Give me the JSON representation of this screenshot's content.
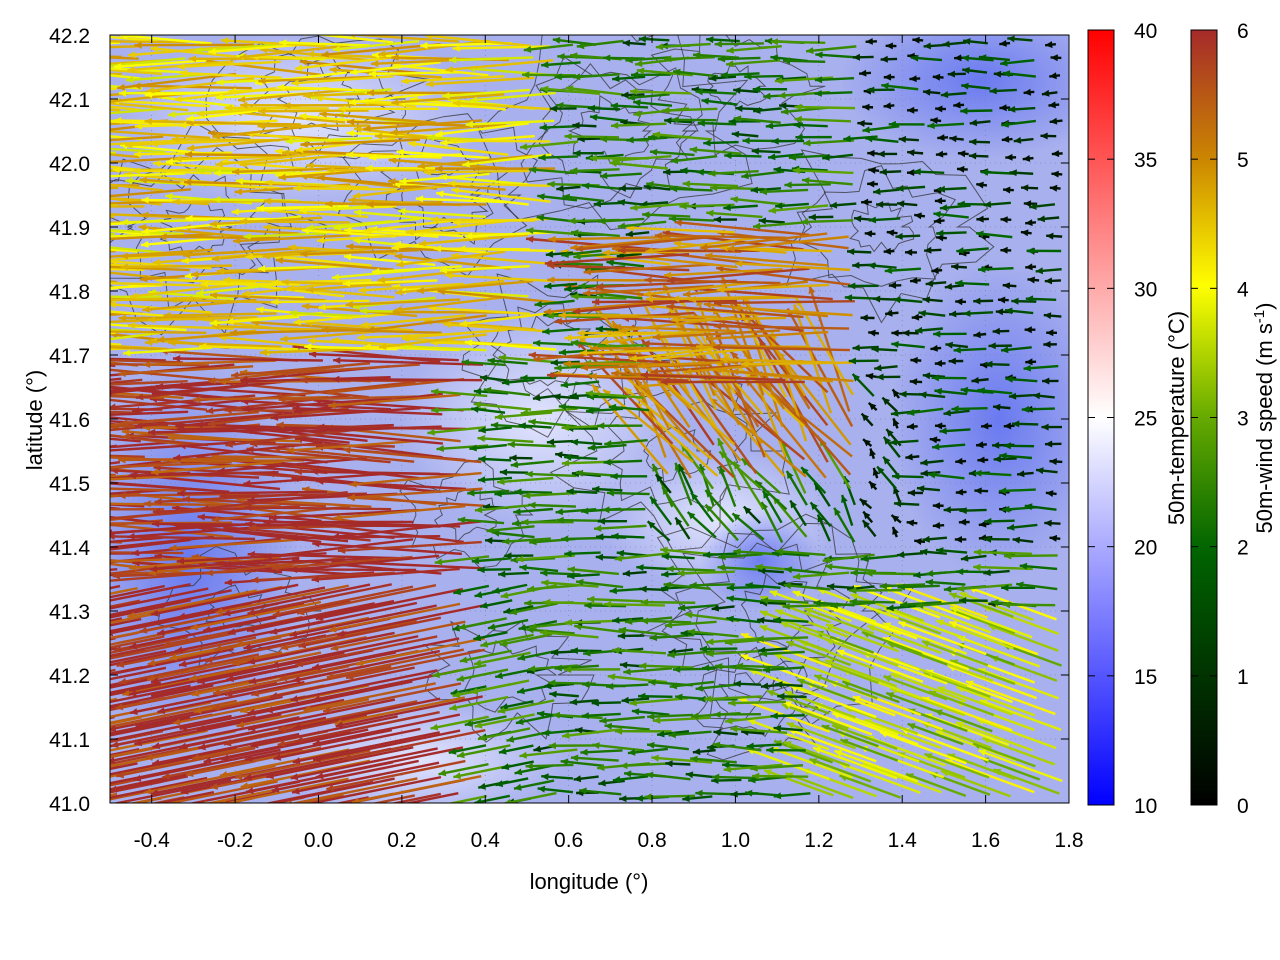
{
  "chart_data": {
    "type": "heatmap",
    "subtype": "vector-field-over-scalar-field-with-contours",
    "title": "",
    "xlabel": "longitude (°)",
    "ylabel": "latitude (°)",
    "xlim": [
      -0.5,
      1.8
    ],
    "ylim": [
      41.0,
      42.2
    ],
    "x_ticks": [
      "-0.4",
      "-0.2",
      "0.0",
      "0.2",
      "0.4",
      "0.6",
      "0.8",
      "1.0",
      "1.2",
      "1.4",
      "1.6",
      "1.8"
    ],
    "x_tick_values": [
      -0.4,
      -0.2,
      0.0,
      0.2,
      0.4,
      0.6,
      0.8,
      1.0,
      1.2,
      1.4,
      1.6,
      1.8
    ],
    "y_ticks": [
      "41.0",
      "41.1",
      "41.2",
      "41.3",
      "41.4",
      "41.5",
      "41.6",
      "41.7",
      "41.8",
      "41.9",
      "42.0",
      "42.1",
      "42.2"
    ],
    "y_tick_values": [
      41.0,
      41.1,
      41.2,
      41.3,
      41.4,
      41.5,
      41.6,
      41.7,
      41.8,
      41.9,
      42.0,
      42.1,
      42.2
    ],
    "grid": true,
    "temperature_colorbar": {
      "label": "50m-temperature (°C)",
      "range": [
        10,
        40
      ],
      "ticks": [
        "10",
        "15",
        "20",
        "25",
        "30",
        "35",
        "40"
      ],
      "tick_values": [
        10,
        15,
        20,
        25,
        30,
        35,
        40
      ],
      "colors": [
        "#0000ff",
        "#ffffff",
        "#ff0000"
      ]
    },
    "wind_colorbar": {
      "label": "50m-wind speed (m s",
      "label_sup": "-1",
      "label_end": ")",
      "range": [
        0,
        6
      ],
      "ticks": [
        "0",
        "1",
        "2",
        "3",
        "4",
        "5",
        "6"
      ],
      "tick_values": [
        0,
        1,
        2,
        3,
        4,
        5,
        6
      ],
      "colors": [
        "#000000",
        "#006400",
        "#66aa00",
        "#ffff00",
        "#cc8800",
        "#a52a2a"
      ]
    },
    "field_background_color": "#a8b0ee",
    "arrow_direction": "westward (easterly wind) in most of the domain",
    "wind_regions": [
      {
        "lon_range": [
          -0.5,
          0.4
        ],
        "lat_range": [
          41.0,
          41.7
        ],
        "speed": 6
      },
      {
        "lon_range": [
          -0.5,
          0.6
        ],
        "lat_range": [
          41.7,
          42.2
        ],
        "speed": 4
      },
      {
        "lon_range": [
          0.8,
          1.3
        ],
        "lat_range": [
          41.5,
          41.9
        ],
        "speed": 5
      },
      {
        "lon_range": [
          1.2,
          1.8
        ],
        "lat_range": [
          41.0,
          41.3
        ],
        "speed": 3
      },
      {
        "lon_range": [
          1.3,
          1.8
        ],
        "lat_range": [
          41.4,
          42.2
        ],
        "speed": 0.5
      }
    ]
  }
}
